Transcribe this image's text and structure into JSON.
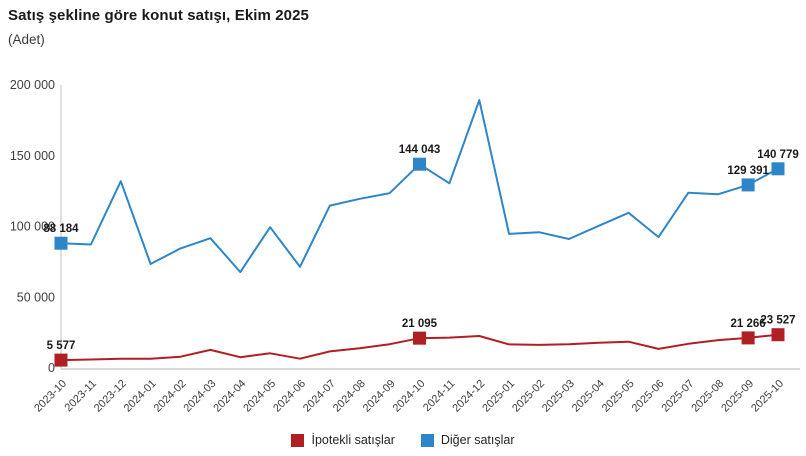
{
  "header": {
    "title": "Satış şekline göre konut satışı, Ekim 2025",
    "unit_label": "(Adet)"
  },
  "chart_data": {
    "type": "line",
    "title": "Satış şekline göre konut satışı, Ekim 2025",
    "subtitle": "(Adet)",
    "categories": [
      "2023-10",
      "2023-11",
      "2023-12",
      "2024-01",
      "2024-02",
      "2024-03",
      "2024-04",
      "2024-05",
      "2024-06",
      "2024-07",
      "2024-08",
      "2024-09",
      "2024-10",
      "2024-11",
      "2024-12",
      "2025-01",
      "2025-02",
      "2025-03",
      "2025-04",
      "2025-05",
      "2025-06",
      "2025-07",
      "2025-08",
      "2025-09",
      "2025-10"
    ],
    "series": [
      {
        "name": "İpotekli satışlar",
        "color": "#b01f24",
        "values": [
          5577,
          6000,
          6500,
          6600,
          8000,
          12800,
          7600,
          10400,
          6600,
          11700,
          14000,
          16800,
          21095,
          21500,
          22600,
          16700,
          16300,
          16800,
          17800,
          18600,
          13500,
          17100,
          19700,
          21266,
          23527
        ]
      },
      {
        "name": "Diğer satışlar",
        "color": "#2e86c8",
        "values": [
          88184,
          87300,
          132000,
          73500,
          84500,
          91700,
          67800,
          99500,
          71500,
          114800,
          119600,
          123500,
          144043,
          130500,
          189300,
          94800,
          96000,
          91200,
          100500,
          109700,
          92500,
          123900,
          122800,
          129391,
          140779
        ]
      }
    ],
    "labeled_indices": [
      0,
      12,
      23,
      24
    ],
    "data_labels": {
      "İpotekli satışlar": [
        "5 577",
        "21 095",
        "21 266",
        "23 527"
      ],
      "Diğer satışlar": [
        "88 184",
        "144 043",
        "129 391",
        "140 779"
      ]
    },
    "ylim": [
      0,
      200000
    ],
    "yticks": [
      0,
      50000,
      100000,
      150000,
      200000
    ],
    "ytick_labels": [
      "0",
      "50 000",
      "100 000",
      "150 000",
      "200 000"
    ],
    "grid": false,
    "legend_position": "bottom",
    "axis_color": "#d9d9d9",
    "tick_text_color": "#3f3f3f",
    "data_label_color": "#1a1a1a"
  }
}
